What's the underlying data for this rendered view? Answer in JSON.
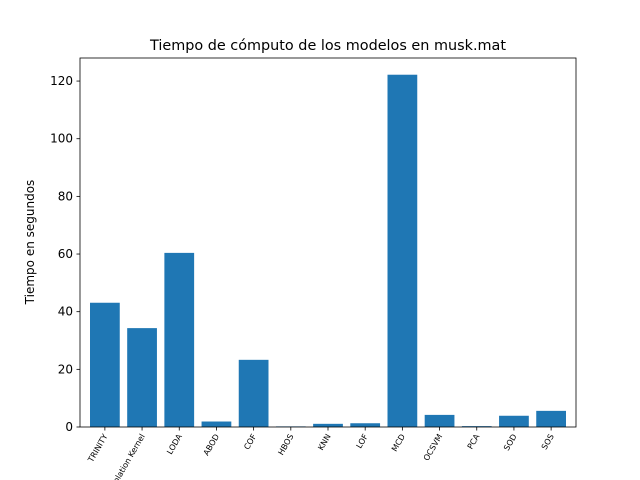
{
  "chart_data": {
    "type": "bar",
    "title": "Tiempo de cómputo de los modelos en musk.mat",
    "xlabel": "",
    "ylabel": "Tiempo en segundos",
    "categories": [
      "TRINITY",
      "Isolation Kernel",
      "LODA",
      "ABOD",
      "COF",
      "HBOS",
      "KNN",
      "LOF",
      "MCD",
      "OCSVM",
      "PCA",
      "SOD",
      "SOS"
    ],
    "values": [
      43.1,
      34.3,
      60.4,
      1.9,
      23.3,
      0.2,
      1.1,
      1.3,
      122.2,
      4.2,
      0.3,
      3.9,
      5.6
    ],
    "ylim": [
      0,
      128
    ],
    "yticks": [
      0,
      20,
      40,
      60,
      80,
      100,
      120
    ],
    "xtick_rotation": 60,
    "bar_color": "#1f77b4",
    "grid": false,
    "legend": "none"
  }
}
